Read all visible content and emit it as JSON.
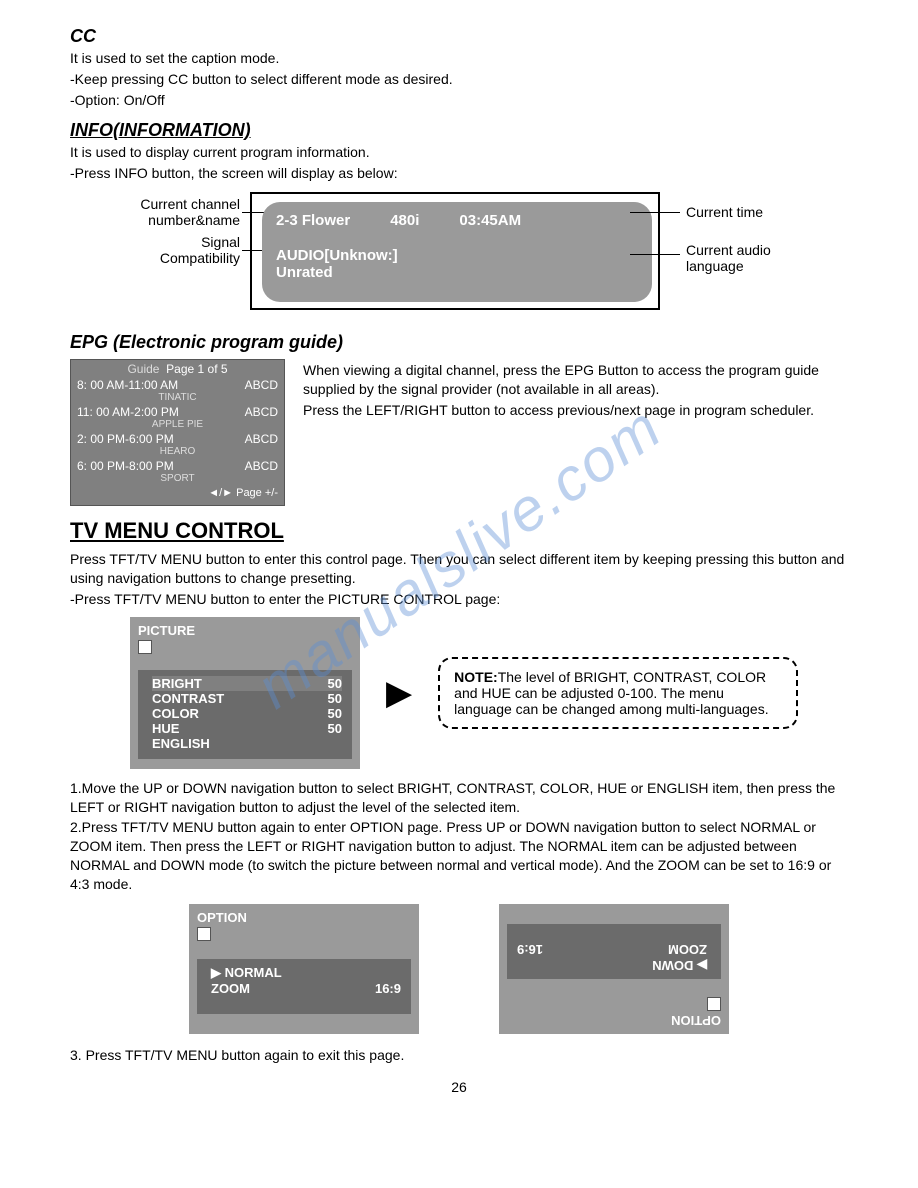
{
  "cc": {
    "heading": "CC",
    "line1": "It is used to set the caption mode.",
    "line2": "-Keep pressing CC button to select different mode as desired.",
    "line3": "-Option: On/Off"
  },
  "info": {
    "heading": "INFO(INFORMATION)",
    "line1": "It is used to display current program information.",
    "line2": "-Press INFO button, the screen will display as below:",
    "callout_left1": "Current channel",
    "callout_left1b": "number&name",
    "callout_left2": "Signal",
    "callout_left2b": "Compatibility",
    "callout_right1": "Current time",
    "callout_right2": "Current audio",
    "callout_right2b": "language",
    "panel_ch": "2-3 Flower",
    "panel_res": "480i",
    "panel_time": "03:45AM",
    "panel_audio": "AUDIO[Unknow:]",
    "panel_rating": "Unrated"
  },
  "epg": {
    "heading": "EPG (Electronic program guide)",
    "text1": "When viewing a digital channel, press the EPG Button to access the program guide supplied by the signal provider (not available in all areas).",
    "text2": "Press the LEFT/RIGHT button to access previous/next page in program scheduler.",
    "guide_title": "Guide",
    "guide_page": "Page 1 of 5",
    "rows": [
      {
        "time": "8: 00 AM-11:00 AM",
        "ch": "ABCD",
        "sub": "TINATIC"
      },
      {
        "time": "11: 00 AM-2:00 PM",
        "ch": "ABCD",
        "sub": "APPLE PIE"
      },
      {
        "time": "2: 00 PM-6:00 PM",
        "ch": "ABCD",
        "sub": "HEARO"
      },
      {
        "time": "6: 00 PM-8:00 PM",
        "ch": "ABCD",
        "sub": "SPORT"
      }
    ],
    "guide_footer": "◄/► Page +/-"
  },
  "tvmenu": {
    "heading": "TV MENU CONTROL",
    "p1": "Press TFT/TV MENU button to enter this control page. Then you can select different item by keeping pressing this button and using navigation buttons to change presetting.",
    "p2": "-Press TFT/TV MENU button to enter the PICTURE CONTROL page:",
    "picture_title": "PICTURE",
    "items": [
      {
        "name": "BRIGHT",
        "val": "50"
      },
      {
        "name": "CONTRAST",
        "val": "50"
      },
      {
        "name": "COLOR",
        "val": "50"
      },
      {
        "name": "HUE",
        "val": "50"
      },
      {
        "name": "ENGLISH",
        "val": ""
      }
    ],
    "note_label": "NOTE:",
    "note_text": "The level of  BRIGHT, CONTRAST, COLOR and  HUE can be adjusted 0-100. The menu language can be changed among multi-languages.",
    "step1": "1.Move the UP or DOWN navigation button to select BRIGHT, CONTRAST, COLOR, HUE or ENGLISH item, then press the LEFT or RIGHT navigation button to adjust the level of the selected item.",
    "step2": "2.Press TFT/TV MENU button again to enter OPTION page. Press UP or DOWN navigation button to select NORMAL or ZOOM item. Then press the LEFT or RIGHT navigation button to adjust. The NORMAL item can be adjusted between NORMAL and DOWN mode (to switch the picture between normal and vertical mode). And the ZOOM can be set to 16:9 or 4:3 mode.",
    "opt_title": "OPTION",
    "opt_items": [
      {
        "name": "NORMAL",
        "val": ""
      },
      {
        "name": "ZOOM",
        "val": "16:9"
      }
    ],
    "opt2_title": "OPTION",
    "opt2_items": [
      {
        "name": "DOWN",
        "val": ""
      },
      {
        "name": "ZOOM",
        "val": "16:9"
      }
    ],
    "step3": "3. Press TFT/TV MENU button again to exit this page."
  },
  "page_number": "26",
  "colors": {
    "panel_bg": "#9a9a9a",
    "menu_inner": "#6b6b6b",
    "watermark": "#5b8fd6"
  }
}
